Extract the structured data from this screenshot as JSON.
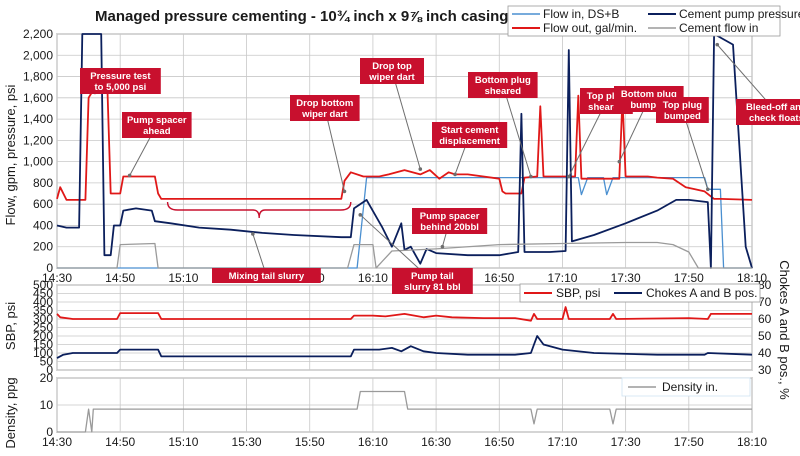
{
  "chart_data": [
    {
      "type": "line",
      "title": "Managed pressure cementing - 10¾ inch x 9⅞ inch casing",
      "ylabel": "Flow, gpm, pressure, psi",
      "ylim": [
        0,
        2200
      ],
      "yticks": [
        "0",
        "200",
        "400",
        "600",
        "800",
        "1,000",
        "1,200",
        "1,400",
        "1,600",
        "1,800",
        "2,000",
        "2,200"
      ],
      "ytick_values": [
        0,
        200,
        400,
        600,
        800,
        1000,
        1200,
        1400,
        1600,
        1800,
        2000,
        2200
      ],
      "xticks": [
        "14:30",
        "14:50",
        "15:10",
        "15:30",
        "15:50",
        "16:10",
        "16:30",
        "16:50",
        "17:10",
        "17:30",
        "17:50",
        "18:10"
      ],
      "xlim_min": [
        0,
        220
      ],
      "grid": true,
      "legend_position": "top-right",
      "series": [
        {
          "name": "Flow in, DS+B",
          "color": "#4a8fd0",
          "points": [
            [
              0,
              0
            ],
            [
              95,
              0
            ],
            [
              98,
              850
            ],
            [
              165,
              850
            ],
            [
              166,
              690
            ],
            [
              168,
              850
            ],
            [
              173,
              850
            ],
            [
              174,
              690
            ],
            [
              176,
              850
            ],
            [
              205,
              850
            ],
            [
              206,
              740
            ],
            [
              208,
              740
            ],
            [
              210,
              740
            ],
            [
              211,
              0
            ],
            [
              220,
              0
            ]
          ]
        },
        {
          "name": "Flow out, gal/min.",
          "color": "#e01818",
          "points": [
            [
              0,
              650
            ],
            [
              1,
              760
            ],
            [
              3,
              640
            ],
            [
              9,
              640
            ],
            [
              10,
              1600
            ],
            [
              11,
              1650
            ],
            [
              16,
              1660
            ],
            [
              17,
              700
            ],
            [
              20,
              700
            ],
            [
              21,
              860
            ],
            [
              31,
              860
            ],
            [
              32,
              700
            ],
            [
              33,
              650
            ],
            [
              90,
              650
            ],
            [
              91,
              820
            ],
            [
              93,
              900
            ],
            [
              97,
              860
            ],
            [
              102,
              860
            ],
            [
              105,
              880
            ],
            [
              110,
              920
            ],
            [
              115,
              880
            ],
            [
              118,
              920
            ],
            [
              121,
              840
            ],
            [
              124,
              900
            ],
            [
              126,
              880
            ],
            [
              130,
              880
            ],
            [
              140,
              840
            ],
            [
              141,
              720
            ],
            [
              142,
              700
            ],
            [
              147,
              700
            ],
            [
              148,
              850
            ],
            [
              152,
              860
            ],
            [
              153,
              1520
            ],
            [
              154,
              860
            ],
            [
              160,
              860
            ],
            [
              164,
              860
            ],
            [
              165,
              1620
            ],
            [
              166,
              840
            ],
            [
              172,
              840
            ],
            [
              178,
              840
            ],
            [
              179,
              1600
            ],
            [
              180,
              860
            ],
            [
              187,
              860
            ],
            [
              190,
              850
            ],
            [
              195,
              840
            ],
            [
              199,
              760
            ],
            [
              202,
              740
            ],
            [
              205,
              720
            ],
            [
              208,
              650
            ],
            [
              210,
              650
            ],
            [
              220,
              640
            ]
          ]
        },
        {
          "name": "Cement pump pressure",
          "color": "#0b1f5c",
          "points": [
            [
              0,
              400
            ],
            [
              3,
              380
            ],
            [
              7,
              380
            ],
            [
              8,
              2200
            ],
            [
              14,
              2200
            ],
            [
              15,
              120
            ],
            [
              17,
              120
            ],
            [
              18,
              400
            ],
            [
              20,
              400
            ],
            [
              21,
              540
            ],
            [
              25,
              560
            ],
            [
              30,
              540
            ],
            [
              31,
              440
            ],
            [
              36,
              420
            ],
            [
              45,
              380
            ],
            [
              55,
              360
            ],
            [
              65,
              330
            ],
            [
              75,
              310
            ],
            [
              90,
              290
            ],
            [
              93,
              290
            ],
            [
              94,
              560
            ],
            [
              98,
              640
            ],
            [
              103,
              380
            ],
            [
              106,
              200
            ],
            [
              109,
              420
            ],
            [
              110,
              170
            ],
            [
              112,
              200
            ],
            [
              115,
              40
            ],
            [
              117,
              180
            ],
            [
              120,
              140
            ],
            [
              130,
              120
            ],
            [
              140,
              120
            ],
            [
              146,
              150
            ],
            [
              147,
              1450
            ],
            [
              148,
              150
            ],
            [
              156,
              150
            ],
            [
              161,
              160
            ],
            [
              162,
              2050
            ],
            [
              163,
              250
            ],
            [
              170,
              310
            ],
            [
              180,
              420
            ],
            [
              190,
              540
            ],
            [
              196,
              640
            ],
            [
              200,
              640
            ],
            [
              206,
              620
            ],
            [
              207,
              0
            ],
            [
              208,
              2200
            ],
            [
              214,
              2100
            ],
            [
              218,
              200
            ],
            [
              220,
              0
            ]
          ]
        },
        {
          "name": "Cement flow in",
          "color": "#9a9a9a",
          "points": [
            [
              0,
              0
            ],
            [
              19,
              0
            ],
            [
              20,
              220
            ],
            [
              31,
              230
            ],
            [
              32,
              0
            ],
            [
              92,
              0
            ],
            [
              94,
              220
            ],
            [
              100,
              220
            ],
            [
              101,
              0
            ],
            [
              106,
              160
            ],
            [
              120,
              180
            ],
            [
              140,
              220
            ],
            [
              160,
              230
            ],
            [
              180,
              240
            ],
            [
              190,
              240
            ],
            [
              195,
              220
            ],
            [
              200,
              150
            ],
            [
              203,
              0
            ],
            [
              220,
              0
            ]
          ]
        }
      ],
      "annotations": [
        {
          "lines": [
            "Pressure test",
            "to 5,000 psi"
          ],
          "x": 12,
          "y": 1650
        },
        {
          "lines": [
            "Pump spacer",
            "ahead"
          ],
          "x": 23,
          "y": 870
        },
        {
          "lines": [
            "Drop bottom",
            "wiper dart"
          ],
          "x": 91,
          "y": 720
        },
        {
          "lines": [
            "Mixing tail slurry"
          ],
          "x": 62,
          "y": 320
        },
        {
          "lines": [
            "Drop top",
            "wiper dart"
          ],
          "x": 115,
          "y": 930
        },
        {
          "lines": [
            "Start cement",
            "displacement"
          ],
          "x": 126,
          "y": 880
        },
        {
          "lines": [
            "Pump spacer",
            "behind 20bbl"
          ],
          "x": 122,
          "y": 200
        },
        {
          "lines": [
            "Pump tail",
            "slurry 81 bbl"
          ],
          "x": 96,
          "y": 500
        },
        {
          "lines": [
            "Bottom plug",
            "sheared"
          ],
          "x": 150,
          "y": 860
        },
        {
          "lines": [
            "Top plug",
            "sheared"
          ],
          "x": 162,
          "y": 860
        },
        {
          "lines": [
            "Bottom plug",
            "bumped"
          ],
          "x": 178,
          "y": 1000
        },
        {
          "lines": [
            "Top plug",
            "bumped"
          ],
          "x": 206,
          "y": 740
        },
        {
          "lines": [
            "Bleed-off and",
            "check floats"
          ],
          "x": 209,
          "y": 2100
        }
      ]
    },
    {
      "type": "line",
      "ylabel": "SBP, psi",
      "y2label": "Chokes A and B pos., %",
      "ylim": [
        0,
        500
      ],
      "yticks": [
        "0",
        "50",
        "100",
        "150",
        "200",
        "250",
        "300",
        "350",
        "400",
        "450",
        "500"
      ],
      "ytick_values": [
        0,
        50,
        100,
        150,
        200,
        250,
        300,
        350,
        400,
        450,
        500
      ],
      "y2lim": [
        30,
        80
      ],
      "y2ticks": [
        "30",
        "40",
        "50",
        "60",
        "70",
        "80"
      ],
      "y2tick_values": [
        30,
        40,
        50,
        60,
        70,
        80
      ],
      "series": [
        {
          "name": "SBP, psi",
          "color": "#e01818",
          "axis": "left",
          "points": [
            [
              0,
              330
            ],
            [
              1,
              310
            ],
            [
              5,
              300
            ],
            [
              19,
              300
            ],
            [
              20,
              335
            ],
            [
              32,
              335
            ],
            [
              33,
              300
            ],
            [
              93,
              300
            ],
            [
              94,
              320
            ],
            [
              100,
              320
            ],
            [
              104,
              315
            ],
            [
              110,
              330
            ],
            [
              116,
              310
            ],
            [
              120,
              320
            ],
            [
              125,
              310
            ],
            [
              135,
              305
            ],
            [
              145,
              305
            ],
            [
              150,
              290
            ],
            [
              151,
              330
            ],
            [
              152,
              300
            ],
            [
              160,
              300
            ],
            [
              161,
              370
            ],
            [
              162,
              300
            ],
            [
              175,
              300
            ],
            [
              176,
              330
            ],
            [
              177,
              300
            ],
            [
              200,
              305
            ],
            [
              206,
              300
            ],
            [
              207,
              330
            ],
            [
              220,
              330
            ]
          ]
        },
        {
          "name": "Chokes A and B pos.",
          "color": "#0b1f5c",
          "axis": "right",
          "points": [
            [
              0,
              37
            ],
            [
              2,
              39
            ],
            [
              5,
              40
            ],
            [
              19,
              40
            ],
            [
              20,
              42
            ],
            [
              32,
              42
            ],
            [
              33,
              38
            ],
            [
              93,
              38
            ],
            [
              94,
              42
            ],
            [
              102,
              42
            ],
            [
              106,
              43
            ],
            [
              109,
              41
            ],
            [
              112,
              44
            ],
            [
              116,
              41
            ],
            [
              120,
              40
            ],
            [
              130,
              39
            ],
            [
              145,
              39
            ],
            [
              150,
              40
            ],
            [
              151,
              45
            ],
            [
              152,
              50
            ],
            [
              154,
              45
            ],
            [
              160,
              42
            ],
            [
              170,
              40
            ],
            [
              190,
              39
            ],
            [
              205,
              39
            ],
            [
              206,
              40
            ],
            [
              220,
              39
            ]
          ]
        }
      ]
    },
    {
      "type": "line",
      "ylabel": "Density, ppg",
      "ylim": [
        0,
        20
      ],
      "yticks": [
        "0",
        "10",
        "20"
      ],
      "ytick_values": [
        0,
        10,
        20
      ],
      "xticks": [
        "14:30",
        "14:50",
        "15:10",
        "15:30",
        "15:50",
        "16:10",
        "16:30",
        "16:50",
        "17:10",
        "17:30",
        "17:50",
        "18:10"
      ],
      "series": [
        {
          "name": "Density in.",
          "color": "#9a9a9a",
          "points": [
            [
              0,
              0
            ],
            [
              9,
              0
            ],
            [
              10,
              8.5
            ],
            [
              11,
              0
            ],
            [
              11.5,
              8.5
            ],
            [
              35,
              8.5
            ],
            [
              95,
              8.5
            ],
            [
              96,
              15
            ],
            [
              110,
              15
            ],
            [
              111,
              8.5
            ],
            [
              140,
              8.5
            ],
            [
              150,
              8.5
            ],
            [
              151,
              3
            ],
            [
              152,
              8.5
            ],
            [
              175,
              8.5
            ],
            [
              176,
              3
            ],
            [
              177,
              8.5
            ],
            [
              220,
              8.5
            ]
          ]
        }
      ]
    }
  ]
}
